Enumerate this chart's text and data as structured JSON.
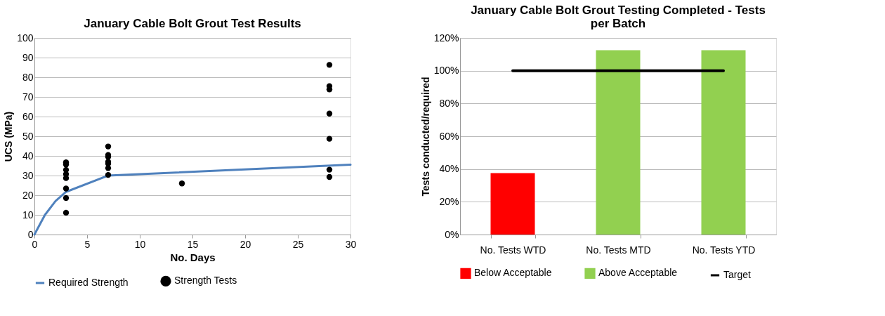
{
  "chart_data": [
    {
      "type": "scatter",
      "title": "January Cable Bolt Grout Test Results",
      "xlabel": "No. Days",
      "ylabel": "UCS (MPa)",
      "xlim": [
        0,
        30
      ],
      "xticks": [
        0,
        5,
        10,
        15,
        20,
        25,
        30
      ],
      "ylim": [
        0,
        100
      ],
      "yticks": [
        0,
        10,
        20,
        30,
        40,
        50,
        60,
        70,
        80,
        90,
        100
      ],
      "grid": "y",
      "legend": "bottom",
      "series": [
        {
          "name": "Required Strength",
          "type": "line",
          "color": "#4f81bd",
          "marker": "none",
          "line_style": "solid",
          "x": [
            0,
            1,
            2,
            3,
            7,
            30
          ],
          "values": [
            0,
            10,
            17,
            21.7,
            30,
            35.5
          ]
        },
        {
          "name": "Strength Tests",
          "type": "scatter",
          "color": "#000000",
          "marker": "circle",
          "x": [
            3,
            3,
            3,
            3,
            3,
            3,
            3,
            3,
            7,
            7,
            7,
            7,
            7,
            7,
            7,
            14,
            28,
            28,
            28,
            28,
            28,
            28,
            28
          ],
          "values": [
            36.7,
            35.6,
            32.9,
            30.7,
            28.7,
            23.4,
            18.6,
            11.1,
            44.8,
            40.5,
            39.5,
            37.0,
            36.1,
            33.8,
            30.3,
            26.0,
            86.3,
            75.5,
            73.8,
            61.5,
            48.7,
            33.0,
            29.3
          ]
        }
      ]
    },
    {
      "type": "bar",
      "title": "January Cable Bolt Grout Testing Completed - Tests per Batch",
      "ylabel": "Tests conducted/required",
      "categories": [
        "No. Tests WTD",
        "No. Tests MTD",
        "No. Tests YTD"
      ],
      "ylim": [
        0,
        120
      ],
      "yticks": [
        {
          "value": 0,
          "label": "0%"
        },
        {
          "value": 20,
          "label": "20%"
        },
        {
          "value": 40,
          "label": "40%"
        },
        {
          "value": 60,
          "label": "60%"
        },
        {
          "value": 80,
          "label": "80%"
        },
        {
          "value": 100,
          "label": "100%"
        },
        {
          "value": 120,
          "label": "120%"
        }
      ],
      "grid": "y",
      "legend": "bottom",
      "series": [
        {
          "name": "Below Acceptable",
          "type": "bar",
          "color": "#ff0000",
          "values": [
            37.5,
            null,
            null
          ]
        },
        {
          "name": "Above Acceptable",
          "type": "bar",
          "color": "#92d050",
          "values": [
            null,
            112.5,
            112.5
          ]
        },
        {
          "name": "Target",
          "type": "line",
          "color": "#000000",
          "line_style": "solid",
          "values": [
            100,
            100,
            100
          ]
        }
      ]
    }
  ]
}
